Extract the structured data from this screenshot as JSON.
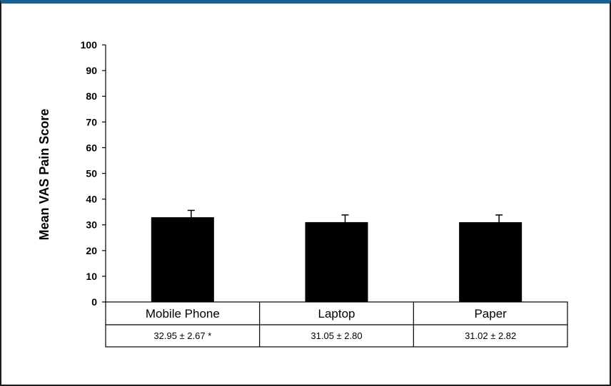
{
  "chart_data": {
    "type": "bar",
    "title": "",
    "xlabel": "",
    "ylabel": "Mean VAS Pain Score",
    "ylim": [
      0,
      100
    ],
    "yticks": [
      0,
      10,
      20,
      30,
      40,
      50,
      60,
      70,
      80,
      90,
      100
    ],
    "categories": [
      "Mobile Phone",
      "Laptop",
      "Paper"
    ],
    "values": [
      32.95,
      31.05,
      31.02
    ],
    "errors": [
      2.67,
      2.8,
      2.82
    ],
    "table_row": [
      "32.95 ± 2.67 *",
      "31.05 ± 2.80",
      "31.02 ± 2.82"
    ],
    "bar_color": "#000000",
    "grid": false,
    "legend": "none"
  }
}
